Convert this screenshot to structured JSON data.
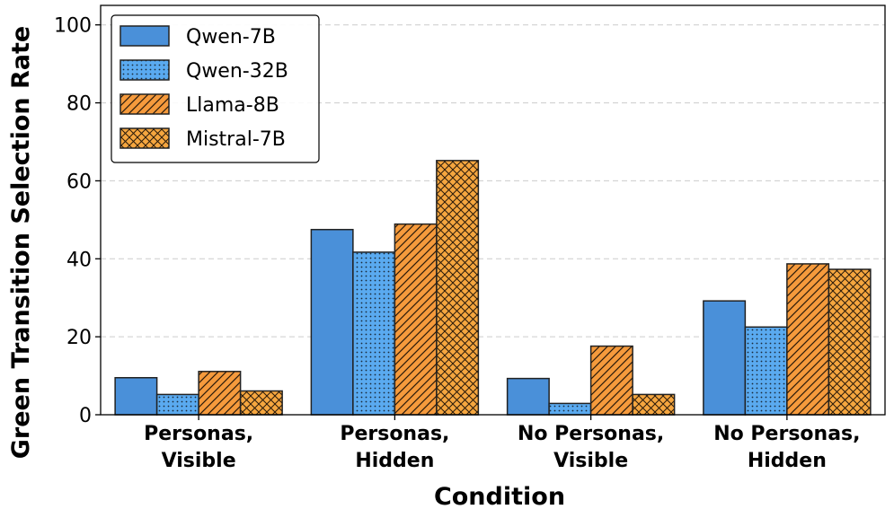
{
  "chart_data": {
    "type": "bar",
    "xlabel": "Condition",
    "ylabel": "Green Transition Selection Rate",
    "ylim": [
      0,
      105
    ],
    "yticks": [
      0,
      20,
      40,
      60,
      80,
      100
    ],
    "grid": "y-dashed",
    "legend_position": "top-left",
    "categories": [
      [
        "Personas,",
        "Visible"
      ],
      [
        "Personas,",
        "Hidden"
      ],
      [
        "No Personas,",
        "Visible"
      ],
      [
        "No Personas,",
        "Hidden"
      ]
    ],
    "series": [
      {
        "name": "Qwen-7B",
        "color": "#4a90d9",
        "pattern": "solid",
        "values": [
          9.5,
          47.5,
          9.3,
          29.2
        ]
      },
      {
        "name": "Qwen-32B",
        "color": "#5aaaf0",
        "pattern": "dots",
        "values": [
          5.2,
          41.7,
          2.9,
          22.5
        ]
      },
      {
        "name": "Llama-8B",
        "color": "#f59a3c",
        "pattern": "diagonal",
        "values": [
          11.1,
          48.9,
          17.6,
          38.7
        ]
      },
      {
        "name": "Mistral-7B",
        "color": "#f5a63f",
        "pattern": "crosshatch",
        "values": [
          6.1,
          65.2,
          5.2,
          37.3
        ]
      }
    ]
  }
}
